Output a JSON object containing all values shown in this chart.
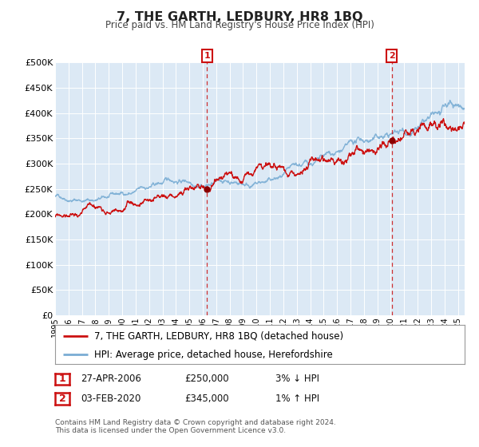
{
  "title": "7, THE GARTH, LEDBURY, HR8 1BQ",
  "subtitle": "Price paid vs. HM Land Registry's House Price Index (HPI)",
  "background_color": "#dce9f5",
  "hpi_color": "#7aadd4",
  "sale_color": "#cc1111",
  "ylim": [
    0,
    500000
  ],
  "yticks": [
    0,
    50000,
    100000,
    150000,
    200000,
    250000,
    300000,
    350000,
    400000,
    450000,
    500000
  ],
  "ytick_labels": [
    "£0",
    "£50K",
    "£100K",
    "£150K",
    "£200K",
    "£250K",
    "£300K",
    "£350K",
    "£400K",
    "£450K",
    "£500K"
  ],
  "xlim_start": 1995.0,
  "xlim_end": 2025.5,
  "xticks": [
    1995,
    1996,
    1997,
    1998,
    1999,
    2000,
    2001,
    2002,
    2003,
    2004,
    2005,
    2006,
    2007,
    2008,
    2009,
    2010,
    2011,
    2012,
    2013,
    2014,
    2015,
    2016,
    2017,
    2018,
    2019,
    2020,
    2021,
    2022,
    2023,
    2024,
    2025
  ],
  "marker1_x": 2006.32,
  "marker1_y": 250000,
  "marker1_label": "1",
  "marker1_date": "27-APR-2006",
  "marker1_price": "£250,000",
  "marker1_hpi": "3% ↓ HPI",
  "marker2_x": 2020.08,
  "marker2_y": 345000,
  "marker2_label": "2",
  "marker2_date": "03-FEB-2020",
  "marker2_price": "£345,000",
  "marker2_hpi": "1% ↑ HPI",
  "legend_sale_label": "7, THE GARTH, LEDBURY, HR8 1BQ (detached house)",
  "legend_hpi_label": "HPI: Average price, detached house, Herefordshire",
  "footer": "Contains HM Land Registry data © Crown copyright and database right 2024.\nThis data is licensed under the Open Government Licence v3.0."
}
